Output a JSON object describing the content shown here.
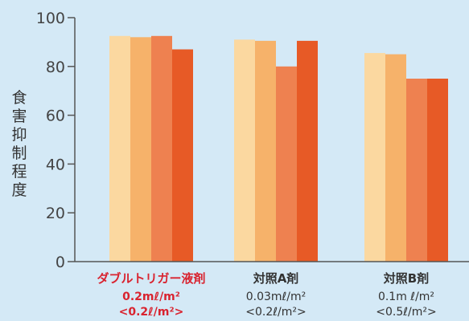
{
  "chart_data": {
    "type": "bar",
    "ylabel": "食害抑制程度",
    "ylim": [
      0,
      100
    ],
    "yticks": [
      "0",
      "20",
      "40",
      "60",
      "80",
      "100"
    ],
    "categories": [
      {
        "name": "ダブルトリガー液剤",
        "line2": "0.2mℓ/m²",
        "line3": "<0.2ℓ/m²>",
        "highlight": true
      },
      {
        "name": "対照A剤",
        "line2": "0.03mℓ/m²",
        "line3": "<0.2ℓ/m²>",
        "highlight": false
      },
      {
        "name": "対照B剤",
        "line2": "0.1m ℓ/m²",
        "line3": "<0.5ℓ/m²>",
        "highlight": false
      }
    ],
    "series": [
      {
        "values": [
          92.5,
          91.0,
          85.5
        ]
      },
      {
        "values": [
          92.0,
          90.5,
          85.0
        ]
      },
      {
        "values": [
          92.5,
          80.0,
          75.0
        ]
      },
      {
        "values": [
          87.0,
          90.5,
          75.0
        ]
      }
    ],
    "colors": [
      "#fbd8a0",
      "#f6b26a",
      "#ee8150",
      "#e75a26"
    ],
    "highlight_color": "#d9232f",
    "text_color": "#333333",
    "grid": false
  }
}
